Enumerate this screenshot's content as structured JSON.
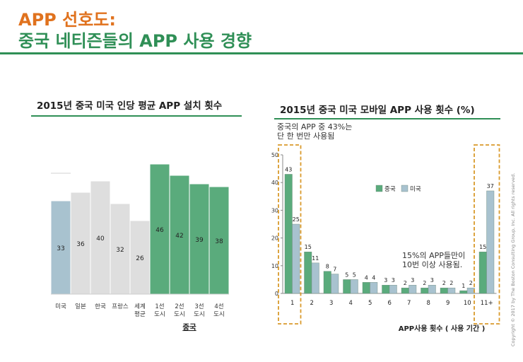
{
  "header": {
    "title_line1": "APP 선호도:",
    "title_line2": "중국 네티즌들의 APP 사용 경향"
  },
  "colors": {
    "china": "#5aab7c",
    "usa": "#a8c2cf",
    "other": "#dedede",
    "accent_orange": "#e0721e",
    "accent_green": "#2f8f56",
    "dashed_box": "#d99a2b"
  },
  "chart_data": [
    {
      "type": "bar",
      "title": "2015년 중국 미국 인당 평균 APP 설치 횟수",
      "categories": [
        "미국",
        "일본",
        "한국",
        "프랑스",
        "세계 평균",
        "1선 도시",
        "2선 도시",
        "3선 도시",
        "4선 도시"
      ],
      "category_lines": [
        [
          "미국"
        ],
        [
          "일본"
        ],
        [
          "한국"
        ],
        [
          "프랑스"
        ],
        [
          "세계",
          "평균"
        ],
        [
          "1선",
          "도시"
        ],
        [
          "2선",
          "도시"
        ],
        [
          "3선",
          "도시"
        ],
        [
          "4선",
          "도시"
        ]
      ],
      "values": [
        33,
        36,
        40,
        32,
        26,
        46,
        42,
        39,
        38
      ],
      "bar_colors": [
        "usa",
        "other",
        "other",
        "other",
        "other",
        "china",
        "china",
        "china",
        "china"
      ],
      "group_label": "중국",
      "ylim": [
        0,
        50
      ],
      "grid": false
    },
    {
      "type": "bar",
      "title": "2015년 중국 미국 모바일 APP 사용 횟수 (%)",
      "categories": [
        "1",
        "2",
        "3",
        "4",
        "5",
        "6",
        "7",
        "8",
        "9",
        "10",
        "11+"
      ],
      "series": [
        {
          "name": "중국",
          "values": [
            43,
            15,
            8,
            5,
            4,
            3,
            2,
            2,
            2,
            1,
            15
          ]
        },
        {
          "name": "미국",
          "values": [
            25,
            11,
            7,
            5,
            4,
            3,
            3,
            3,
            2,
            2,
            37
          ]
        }
      ],
      "xlabel": "APP사용 횟수 ( 사용 기간 )",
      "ylim": [
        0,
        50
      ],
      "yticks": [
        0,
        10,
        20,
        30,
        40,
        50
      ],
      "legend": "center-right",
      "grid": false,
      "annotations": [
        {
          "lines": [
            "중국의 APP 중 43%는",
            "단 한 번만 사용됨"
          ]
        },
        {
          "lines": [
            "15%의 APP들만이",
            "10번 이상 사용됨."
          ]
        }
      ]
    }
  ],
  "footer": {
    "copyright": "Copyright © 2017 by The Boston Consulting Group, Inc. All rights reserved."
  }
}
